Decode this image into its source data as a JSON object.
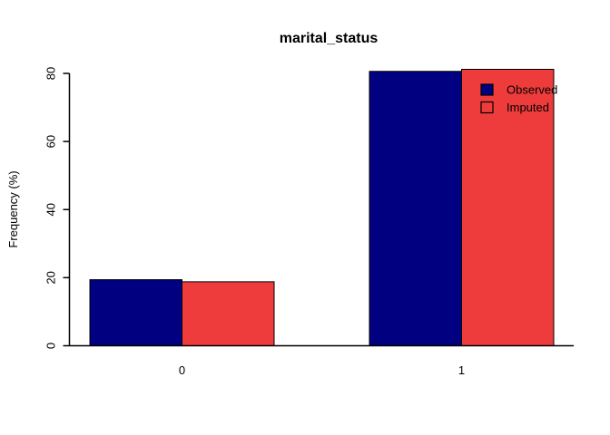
{
  "chart_data": {
    "type": "bar",
    "title": "marital_status",
    "xlabel": "",
    "ylabel": "Frequency (%)",
    "categories": [
      "0",
      "1"
    ],
    "series": [
      {
        "name": "Observed",
        "values": [
          19.4,
          80.6
        ],
        "color": "#000080",
        "swatch": "filled"
      },
      {
        "name": "Imputed",
        "values": [
          18.8,
          81.2
        ],
        "color": "#EE3B3B",
        "swatch": "open"
      }
    ],
    "y_ticks": [
      0,
      20,
      40,
      60,
      80
    ],
    "ylim": [
      0,
      80
    ],
    "grid": false,
    "bar_edge_color": "#000000",
    "axis_color": "#000000",
    "background": "#FFFFFF",
    "legend": {
      "position": "top-right",
      "entries": [
        "Observed",
        "Imputed"
      ]
    }
  }
}
